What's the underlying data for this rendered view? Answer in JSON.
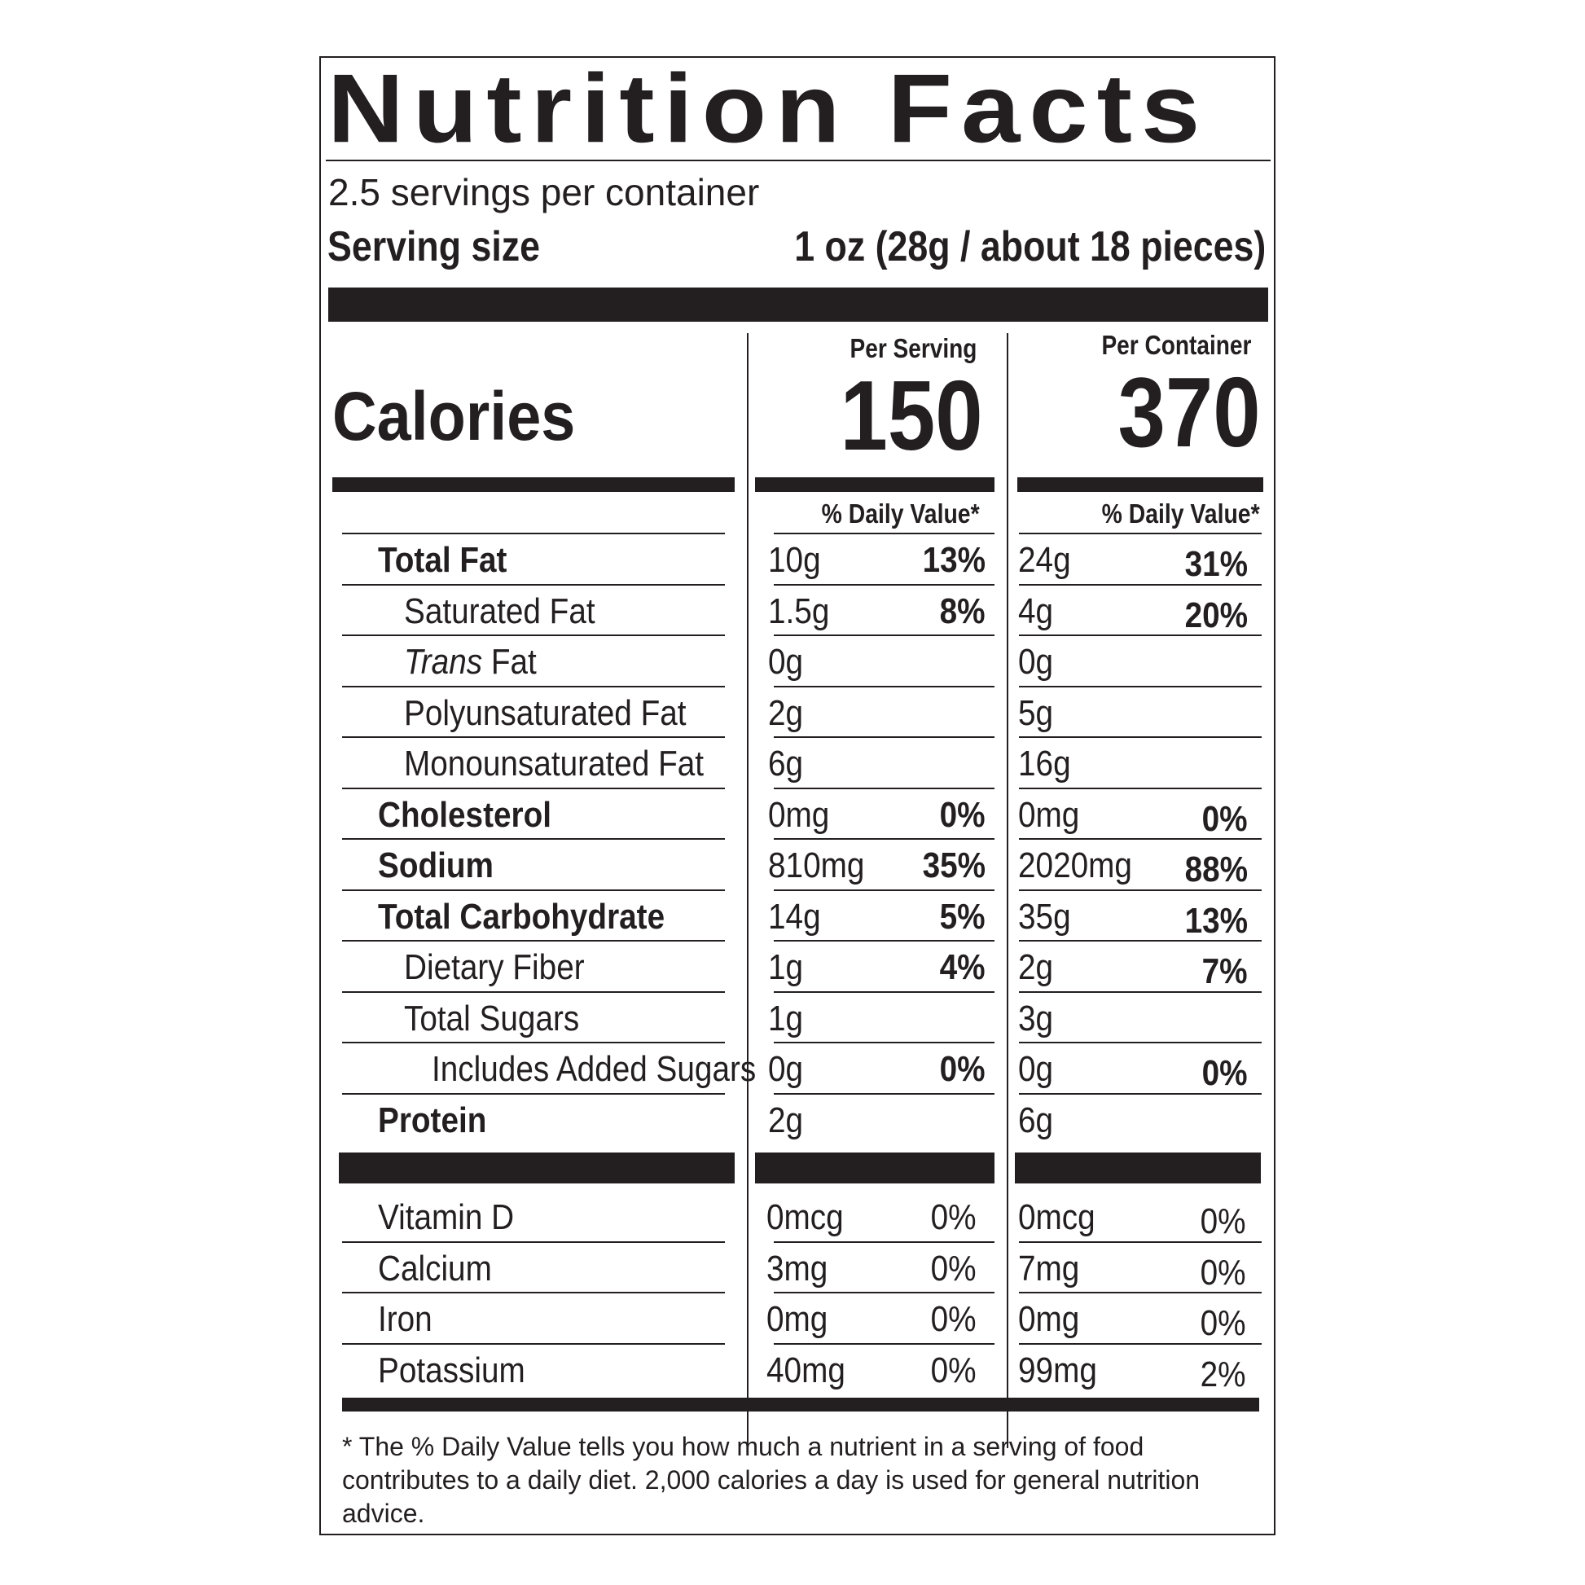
{
  "label": {
    "title": "Nutrition Facts",
    "servings_per_container": "2.5 servings per container",
    "serving_size_label": "Serving size",
    "serving_size_value": "1 oz (28g / about 18 pieces)",
    "per_serving_header": "Per Serving",
    "per_container_header": "Per Container",
    "calories_label": "Calories",
    "calories_per_serving": "150",
    "calories_per_container": "370",
    "daily_value_header": "% Daily Value*",
    "footnote": "* The % Daily Value tells you how much a nutrient in a serving of food contributes to a daily diet. 2,000 calories a day is used for general nutrition advice."
  },
  "nutrients": [
    {
      "name": "Total Fat",
      "serving_amount": "10g",
      "serving_dv": "13%",
      "container_amount": "24g",
      "container_dv": "31%"
    },
    {
      "name": "Saturated Fat",
      "serving_amount": "1.5g",
      "serving_dv": "8%",
      "container_amount": "4g",
      "container_dv": "20%"
    },
    {
      "name_italic": "Trans",
      "name_rest": " Fat",
      "serving_amount": "0g",
      "serving_dv": "",
      "container_amount": "0g",
      "container_dv": ""
    },
    {
      "name": "Polyunsaturated Fat",
      "serving_amount": "2g",
      "serving_dv": "",
      "container_amount": "5g",
      "container_dv": ""
    },
    {
      "name": "Monounsaturated Fat",
      "serving_amount": "6g",
      "serving_dv": "",
      "container_amount": "16g",
      "container_dv": ""
    },
    {
      "name": "Cholesterol",
      "serving_amount": "0mg",
      "serving_dv": "0%",
      "container_amount": "0mg",
      "container_dv": "0%"
    },
    {
      "name": "Sodium",
      "serving_amount": "810mg",
      "serving_dv": "35%",
      "container_amount": "2020mg",
      "container_dv": "88%"
    },
    {
      "name": "Total Carbohydrate",
      "serving_amount": "14g",
      "serving_dv": "5%",
      "container_amount": "35g",
      "container_dv": "13%"
    },
    {
      "name": "Dietary Fiber",
      "serving_amount": "1g",
      "serving_dv": "4%",
      "container_amount": "2g",
      "container_dv": "7%"
    },
    {
      "name": "Total Sugars",
      "serving_amount": "1g",
      "serving_dv": "",
      "container_amount": "3g",
      "container_dv": ""
    },
    {
      "name": "Includes Added Sugars",
      "serving_amount": "0g",
      "serving_dv": "0%",
      "container_amount": "0g",
      "container_dv": "0%"
    },
    {
      "name": "Protein",
      "serving_amount": "2g",
      "serving_dv": "",
      "container_amount": "6g",
      "container_dv": ""
    }
  ],
  "micronutrients": [
    {
      "name": "Vitamin D",
      "serving_amount": "0mcg",
      "serving_dv": "0%",
      "container_amount": "0mcg",
      "container_dv": "0%"
    },
    {
      "name": "Calcium",
      "serving_amount": "3mg",
      "serving_dv": "0%",
      "container_amount": "7mg",
      "container_dv": "0%"
    },
    {
      "name": "Iron",
      "serving_amount": "0mg",
      "serving_dv": "0%",
      "container_amount": "0mg",
      "container_dv": "0%"
    },
    {
      "name": "Potassium",
      "serving_amount": "40mg",
      "serving_dv": "0%",
      "container_amount": "99mg",
      "container_dv": "2%"
    }
  ]
}
